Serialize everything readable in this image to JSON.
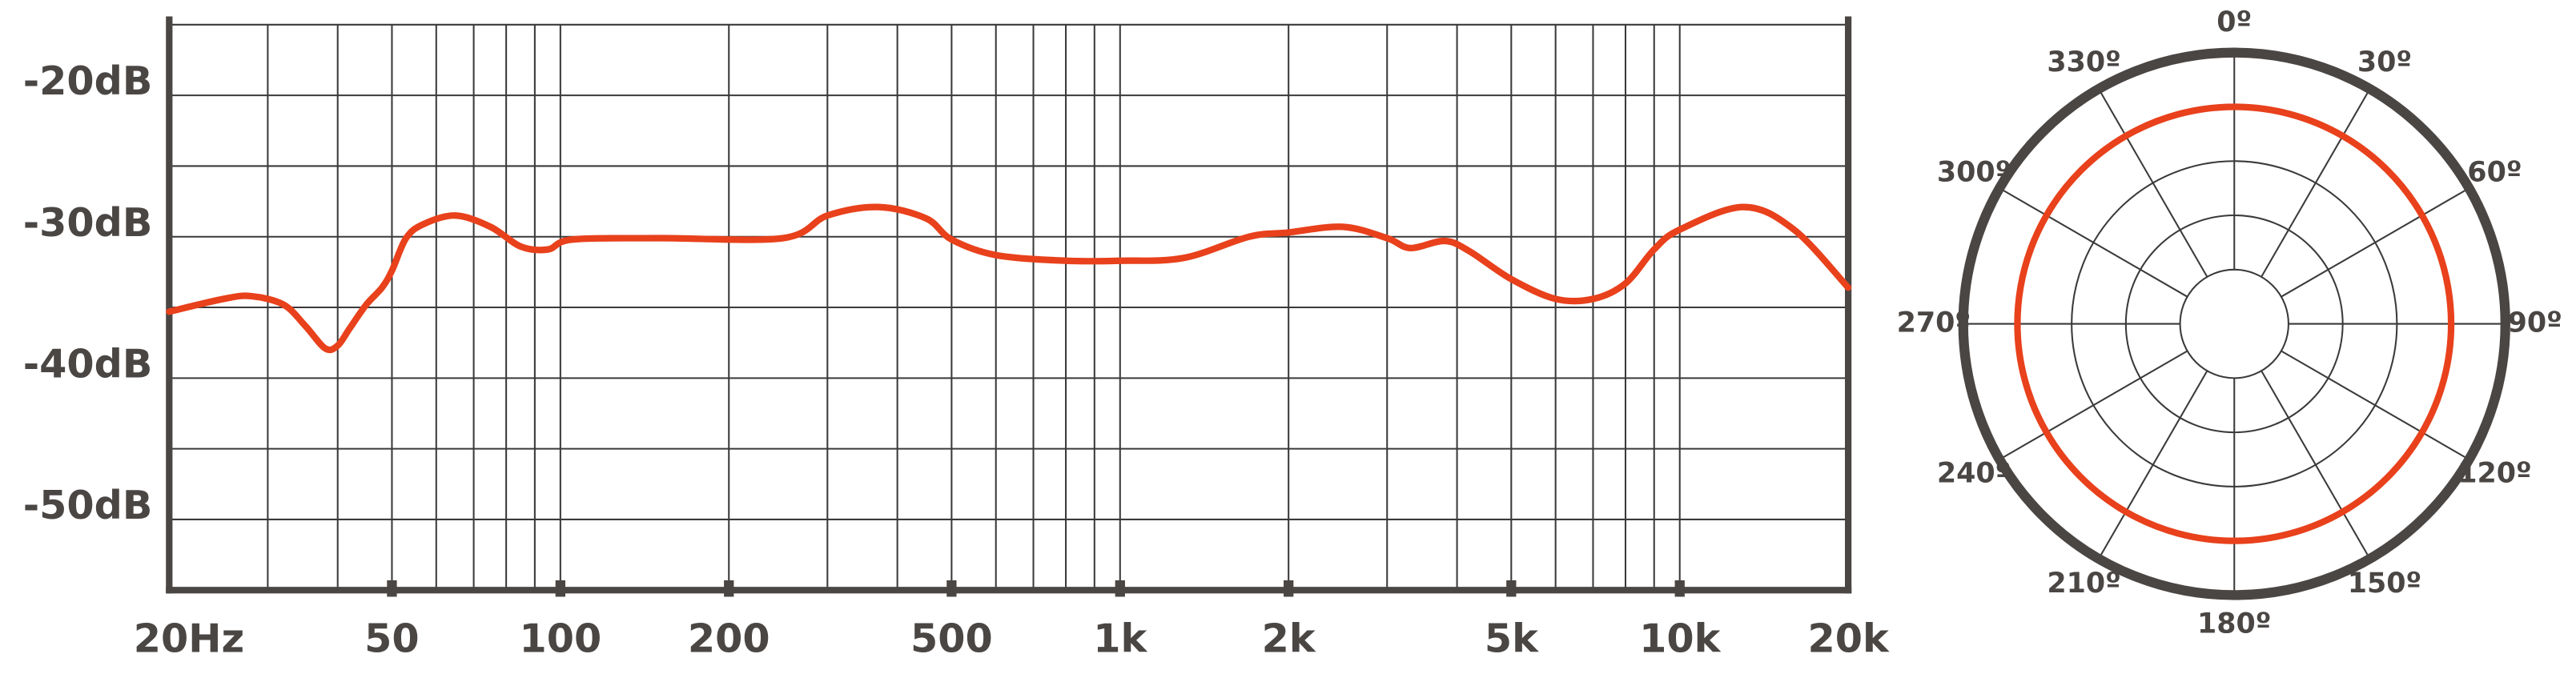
{
  "chart_data": [
    {
      "type": "line",
      "xscale": "log",
      "color": "#e8411c",
      "grid": true,
      "x": [
        20,
        25,
        28,
        32,
        35,
        38,
        40,
        42,
        45,
        48,
        50,
        53,
        57,
        65,
        75,
        85,
        95,
        105,
        150,
        250,
        300,
        370,
        450,
        500,
        600,
        800,
        1000,
        1300,
        1700,
        2000,
        2500,
        3000,
        3300,
        3800,
        4200,
        5000,
        6000,
        7000,
        8000,
        9000,
        10000,
        13000,
        16000,
        20000
      ],
      "values": [
        -35.3,
        -34.4,
        -34.2,
        -34.8,
        -36.3,
        -37.9,
        -37.7,
        -36.5,
        -34.8,
        -33.6,
        -32.4,
        -30.1,
        -29.1,
        -28.5,
        -29.3,
        -30.7,
        -30.9,
        -30.2,
        -30.1,
        -30.1,
        -28.5,
        -27.9,
        -28.7,
        -30.2,
        -31.3,
        -31.7,
        -31.7,
        -31.5,
        -30.0,
        -29.7,
        -29.3,
        -30.1,
        -30.8,
        -30.3,
        -31.0,
        -33.0,
        -34.4,
        -34.4,
        -33.3,
        -30.9,
        -29.5,
        -27.9,
        -29.5,
        -33.6
      ],
      "xlim": [
        20,
        20000
      ],
      "xticks": [
        {
          "value": 20,
          "label": "20Hz"
        },
        50,
        100,
        200,
        500,
        {
          "value": 1000,
          "label": "1k"
        },
        {
          "value": 2000,
          "label": "2k"
        },
        {
          "value": 5000,
          "label": "5k"
        },
        {
          "value": 10000,
          "label": "10k"
        },
        {
          "value": 20000,
          "label": "20k"
        }
      ],
      "x_minor_ticks": [
        30,
        40,
        60,
        70,
        80,
        90,
        300,
        400,
        600,
        700,
        800,
        900,
        3000,
        4000,
        6000,
        7000,
        8000,
        9000
      ],
      "ylim": [
        -55,
        -15
      ],
      "yticks": [
        {
          "value": -20,
          "label": "-20dB"
        },
        {
          "value": -30,
          "label": "-30dB"
        },
        {
          "value": -40,
          "label": "-40dB"
        },
        {
          "value": -50,
          "label": "-50dB"
        }
      ],
      "y_minor_ticks": [
        -45,
        -35,
        -25,
        -15
      ]
    },
    {
      "type": "polar",
      "color": "#e8411c",
      "angles": [
        {
          "value": 0,
          "label": "0º"
        },
        {
          "value": 30,
          "label": "30º"
        },
        {
          "value": 60,
          "label": "60º"
        },
        {
          "value": 90,
          "label": "90º"
        },
        {
          "value": 120,
          "label": "120º"
        },
        {
          "value": 150,
          "label": "150º"
        },
        {
          "value": 180,
          "label": "180º"
        },
        {
          "value": 210,
          "label": "210º"
        },
        {
          "value": 240,
          "label": "240º"
        },
        {
          "value": 270,
          "label": "270º"
        },
        {
          "value": 300,
          "label": "300º"
        },
        {
          "value": 330,
          "label": "330º"
        }
      ],
      "values": [
        4,
        4,
        4,
        4,
        4,
        4,
        4,
        4,
        4,
        4,
        4,
        4
      ],
      "rlim": [
        0,
        5
      ],
      "rticks": [
        1,
        2,
        3,
        4,
        5
      ]
    }
  ]
}
